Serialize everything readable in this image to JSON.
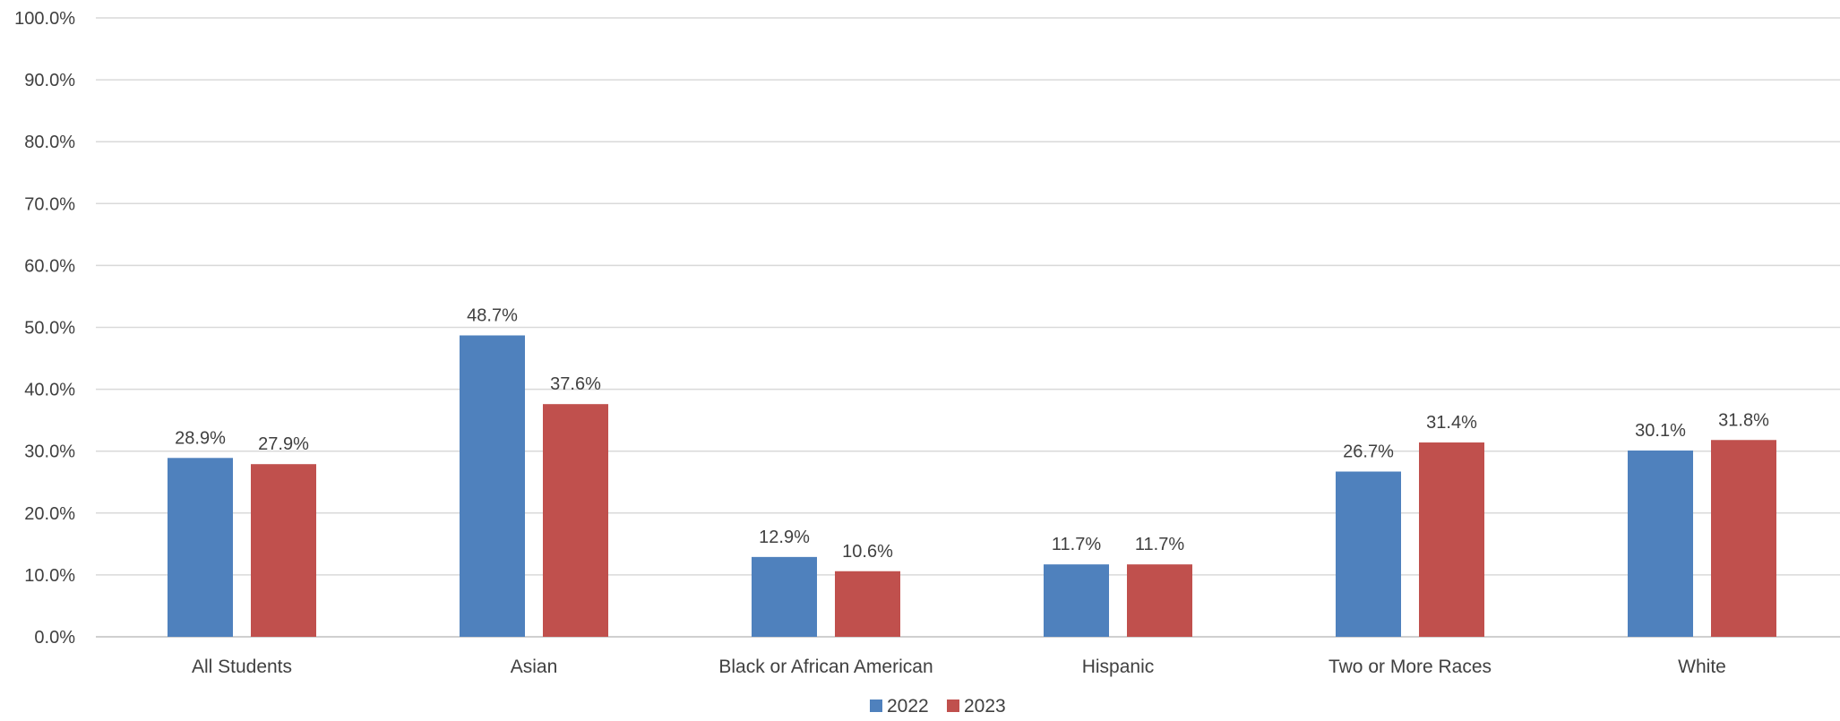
{
  "chart_data": {
    "type": "bar",
    "title": "",
    "xlabel": "",
    "ylabel": "",
    "ylim": [
      0,
      100
    ],
    "ytick_labels": [
      "0.0%",
      "10.0%",
      "20.0%",
      "30.0%",
      "40.0%",
      "50.0%",
      "60.0%",
      "70.0%",
      "80.0%",
      "90.0%",
      "100.0%"
    ],
    "ytick_values": [
      0,
      10,
      20,
      30,
      40,
      50,
      60,
      70,
      80,
      90,
      100
    ],
    "grid": true,
    "legend_position": "bottom-center",
    "categories": [
      "All Students",
      "Asian",
      "Black or African American",
      "Hispanic",
      "Two or More Races",
      "White"
    ],
    "series": [
      {
        "name": "2022",
        "color": "#4f81bd",
        "values": [
          28.9,
          48.7,
          12.9,
          11.7,
          26.7,
          30.1
        ],
        "labels": [
          "28.9%",
          "48.7%",
          "12.9%",
          "11.7%",
          "26.7%",
          "30.1%"
        ]
      },
      {
        "name": "2023",
        "color": "#c0504d",
        "values": [
          27.9,
          37.6,
          10.6,
          11.7,
          31.4,
          31.8
        ],
        "labels": [
          "27.9%",
          "37.6%",
          "10.6%",
          "11.7%",
          "31.4%",
          "31.8%"
        ]
      }
    ]
  }
}
